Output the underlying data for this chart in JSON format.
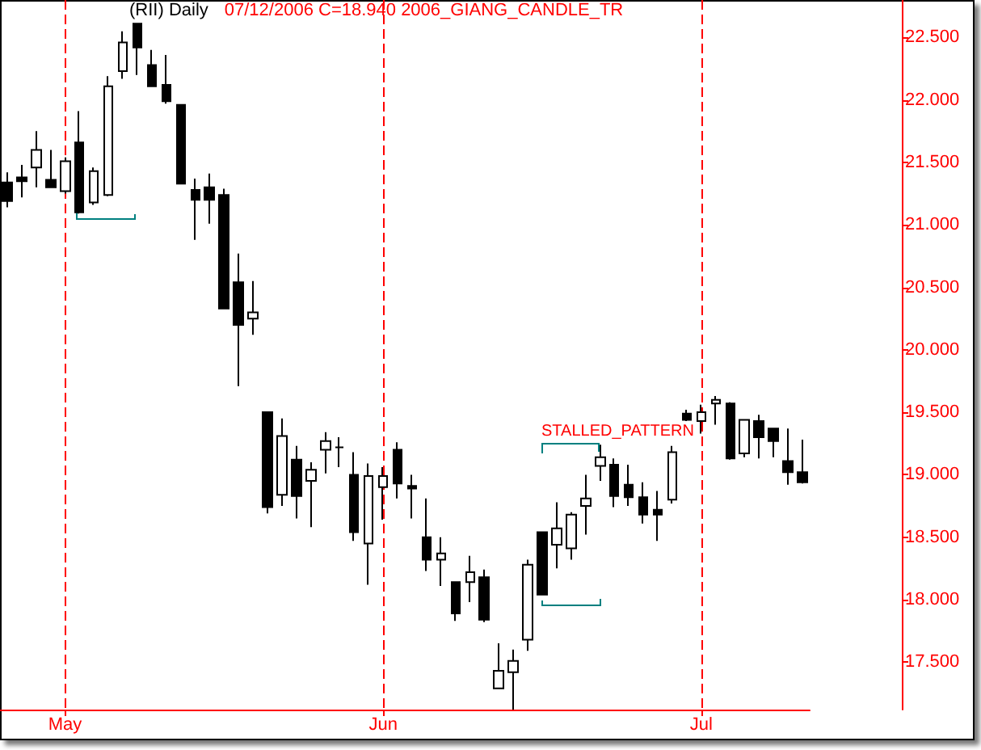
{
  "chart_data": {
    "type": "candlestick",
    "title": "(RII) Daily",
    "subtitle": "07/12/2006 C=18.940 2006_GIANG_CANDLE_TR",
    "annotations": [
      "STALLED_PATTERN"
    ],
    "categories": [
      null,
      null,
      null,
      null,
      "May",
      null,
      null,
      null,
      null,
      null,
      null,
      null,
      null,
      null,
      null,
      null,
      null,
      null,
      null,
      null,
      null,
      null,
      null,
      null,
      null,
      null,
      "Jun",
      null,
      null,
      null,
      null,
      null,
      null,
      null,
      null,
      null,
      null,
      null,
      null,
      null,
      null,
      null,
      null,
      null,
      null,
      null,
      null,
      null,
      "Jul",
      null,
      null,
      null,
      null,
      null,
      null,
      null
    ],
    "ohlc": [
      [
        21.34,
        21.42,
        21.14,
        21.19
      ],
      [
        21.38,
        21.48,
        21.22,
        21.35
      ],
      [
        21.46,
        21.75,
        21.3,
        21.6
      ],
      [
        21.36,
        21.6,
        21.3,
        21.3
      ],
      [
        21.27,
        21.54,
        21.25,
        21.51
      ],
      [
        21.66,
        21.91,
        21.09,
        21.1
      ],
      [
        21.18,
        21.46,
        21.16,
        21.43
      ],
      [
        21.24,
        22.19,
        21.23,
        22.11
      ],
      [
        22.23,
        22.55,
        22.17,
        22.46
      ],
      [
        22.61,
        22.61,
        22.2,
        22.42
      ],
      [
        22.28,
        22.4,
        22.11,
        22.11
      ],
      [
        22.12,
        22.36,
        21.97,
        21.99
      ],
      [
        21.96,
        21.96,
        21.33,
        21.33
      ],
      [
        21.28,
        21.37,
        20.88,
        21.2
      ],
      [
        21.3,
        21.41,
        21.01,
        21.2
      ],
      [
        21.24,
        21.29,
        20.33,
        20.33
      ],
      [
        20.54,
        20.77,
        19.71,
        20.2
      ],
      [
        20.25,
        20.55,
        20.12,
        20.3
      ],
      [
        19.5,
        19.5,
        18.69,
        18.74
      ],
      [
        18.84,
        19.45,
        18.75,
        19.31
      ],
      [
        19.12,
        19.23,
        18.65,
        18.83
      ],
      [
        18.95,
        19.1,
        18.58,
        19.04
      ],
      [
        19.2,
        19.34,
        19.01,
        19.27
      ],
      [
        19.22,
        19.3,
        19.06,
        19.22
      ],
      [
        19.0,
        19.18,
        18.47,
        18.54
      ],
      [
        18.45,
        19.09,
        18.12,
        18.99
      ],
      [
        18.9,
        19.06,
        18.64,
        18.99
      ],
      [
        19.2,
        19.26,
        18.81,
        18.93
      ],
      [
        18.91,
        19.0,
        18.65,
        18.89
      ],
      [
        18.5,
        18.81,
        18.23,
        18.32
      ],
      [
        18.32,
        18.5,
        18.11,
        18.37
      ],
      [
        18.14,
        18.14,
        17.83,
        17.89
      ],
      [
        18.14,
        18.35,
        17.98,
        18.22
      ],
      [
        18.18,
        18.24,
        17.82,
        17.84
      ],
      [
        17.29,
        17.65,
        17.29,
        17.43
      ],
      [
        17.42,
        17.6,
        17.12,
        17.51
      ],
      [
        17.68,
        18.32,
        17.59,
        18.28
      ],
      [
        18.54,
        18.54,
        18.04,
        18.04
      ],
      [
        18.44,
        18.78,
        18.25,
        18.57
      ],
      [
        18.41,
        18.7,
        18.32,
        18.68
      ],
      [
        18.75,
        19.0,
        18.52,
        18.81
      ],
      [
        19.07,
        19.24,
        18.95,
        19.14
      ],
      [
        19.08,
        19.13,
        18.74,
        18.83
      ],
      [
        18.92,
        19.08,
        18.75,
        18.82
      ],
      [
        18.82,
        18.94,
        18.61,
        18.68
      ],
      [
        18.72,
        18.87,
        18.47,
        18.68
      ],
      [
        18.8,
        19.23,
        18.77,
        19.18
      ],
      [
        19.49,
        19.52,
        19.43,
        19.44
      ],
      [
        19.43,
        19.56,
        19.33,
        19.5
      ],
      [
        19.57,
        19.63,
        19.4,
        19.6
      ],
      [
        19.57,
        19.58,
        19.12,
        19.13
      ],
      [
        19.17,
        19.44,
        19.14,
        19.44
      ],
      [
        19.43,
        19.48,
        19.13,
        19.3
      ],
      [
        19.37,
        19.37,
        19.14,
        19.27
      ],
      [
        19.11,
        19.37,
        18.92,
        19.02
      ],
      [
        19.02,
        19.28,
        18.93,
        18.94
      ]
    ],
    "ylim": [
      17.12,
      22.8
    ],
    "yticks": [
      {
        "value": 17.5,
        "label": "17.500"
      },
      {
        "value": 18,
        "label": "18.000"
      },
      {
        "value": 18.5,
        "label": "18.500"
      },
      {
        "value": 19,
        "label": "19.000"
      },
      {
        "value": 19.5,
        "label": "19.500"
      },
      {
        "value": 20,
        "label": "20.000"
      },
      {
        "value": 20.5,
        "label": "20.500"
      },
      {
        "value": 21,
        "label": "21.000"
      },
      {
        "value": 21.5,
        "label": "21.500"
      },
      {
        "value": 22,
        "label": "22.000"
      },
      {
        "value": 22.5,
        "label": "22.500"
      }
    ],
    "grid": "x"
  }
}
